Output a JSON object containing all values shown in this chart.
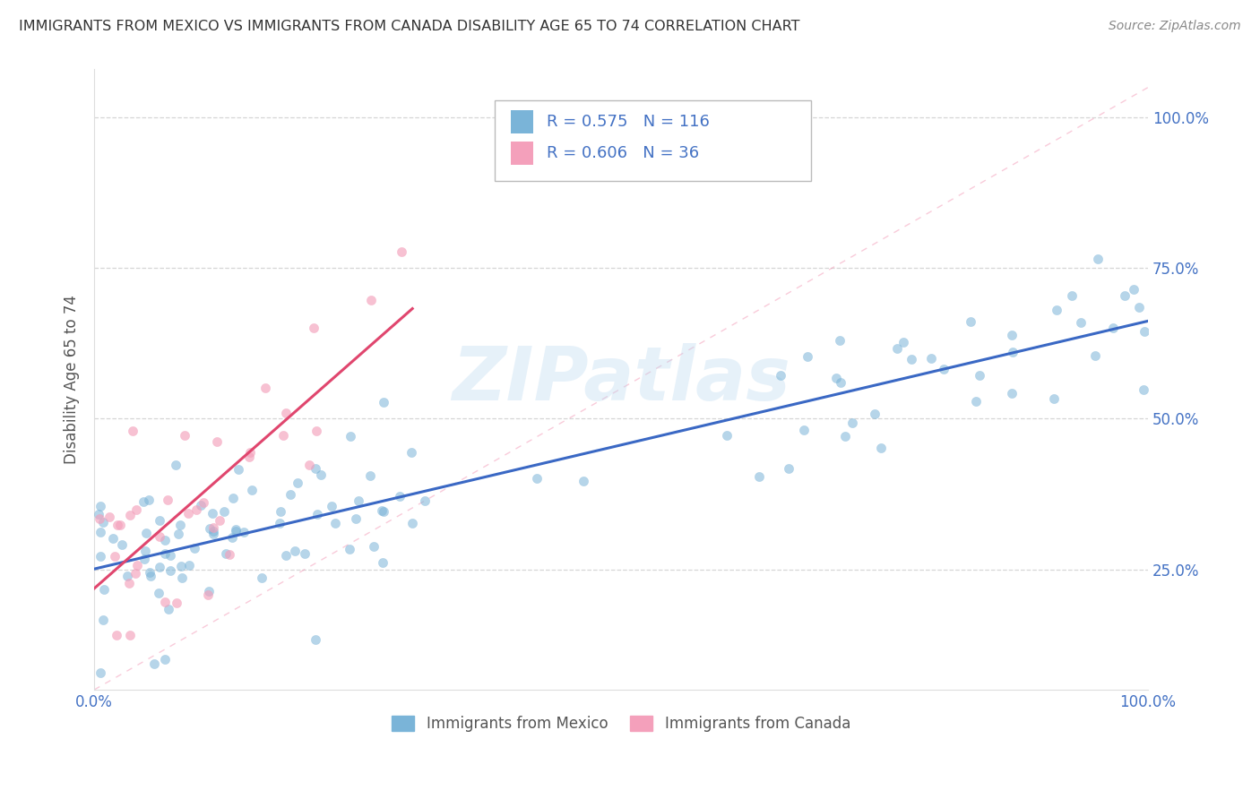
{
  "title": "IMMIGRANTS FROM MEXICO VS IMMIGRANTS FROM CANADA DISABILITY AGE 65 TO 74 CORRELATION CHART",
  "source": "Source: ZipAtlas.com",
  "ylabel": "Disability Age 65 to 74",
  "legend_mexico": {
    "R": 0.575,
    "N": 116,
    "label": "Immigrants from Mexico"
  },
  "legend_canada": {
    "R": 0.606,
    "N": 36,
    "label": "Immigrants from Canada"
  },
  "mexico_color": "#7ab4d8",
  "canada_color": "#f4a0bb",
  "mexico_line_color": "#3a68c4",
  "canada_line_color": "#e0466e",
  "diagonal_color": "#f4a0bb",
  "watermark_text": "ZIPatlas",
  "watermark_color": "#b8d8f0",
  "xlim": [
    0.0,
    1.0
  ],
  "ylim": [
    0.05,
    1.08
  ],
  "background_color": "#ffffff",
  "grid_color": "#cccccc",
  "title_color": "#333333",
  "axis_label_color": "#555555",
  "tick_color": "#4472c4",
  "ytick_vals": [
    0.25,
    0.5,
    0.75,
    1.0
  ],
  "ytick_labels": [
    "25.0%",
    "50.0%",
    "75.0%",
    "100.0%"
  ]
}
